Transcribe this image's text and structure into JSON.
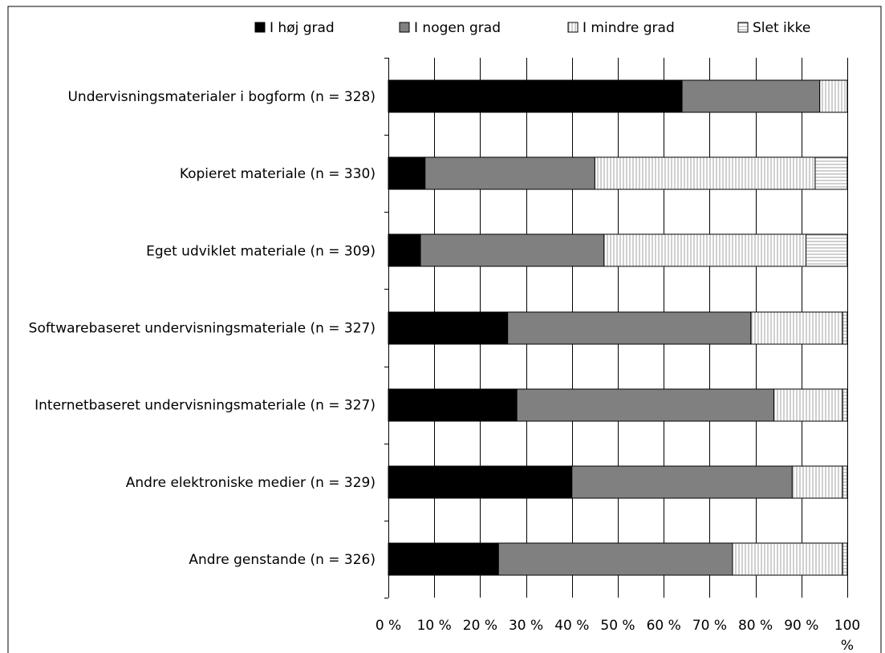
{
  "chart_data": {
    "type": "bar",
    "orientation": "horizontal",
    "stacked": "percent",
    "categories": [
      "Undervisningsmaterialer i bogform (n = 328)",
      "Kopieret materiale (n = 330)",
      "Eget udviklet materiale (n = 309)",
      "Softwarebaseret undervisningsmateriale (n = 327)",
      "Internetbaseret undervisningsmateriale (n = 327)",
      "Andre elektroniske medier (n = 329)",
      "Andre genstande (n = 326)"
    ],
    "series": [
      {
        "name": "I høj grad",
        "values": [
          64,
          8,
          7,
          26,
          28,
          40,
          24
        ],
        "color": "#000000",
        "fill_style": "solid"
      },
      {
        "name": "I nogen grad",
        "values": [
          30,
          37,
          40,
          53,
          56,
          48,
          51
        ],
        "color": "#808080",
        "fill_style": "solid"
      },
      {
        "name": "I mindre grad",
        "values": [
          6,
          48,
          44,
          20,
          15,
          11,
          24
        ],
        "color": "#ffffff",
        "fill_style": "vertical-lines"
      },
      {
        "name": "Slet ikke",
        "values": [
          0,
          7,
          9,
          1,
          1,
          1,
          1
        ],
        "color": "#ffffff",
        "fill_style": "horizontal-lines"
      }
    ],
    "x_ticks": [
      "0 %",
      "10 %",
      "20 %",
      "30 %",
      "40 %",
      "50 %",
      "60 %",
      "70 %",
      "80 %",
      "90 %",
      "100 %"
    ],
    "xlim": [
      0,
      100
    ],
    "grid": true,
    "legend_position": "top"
  }
}
